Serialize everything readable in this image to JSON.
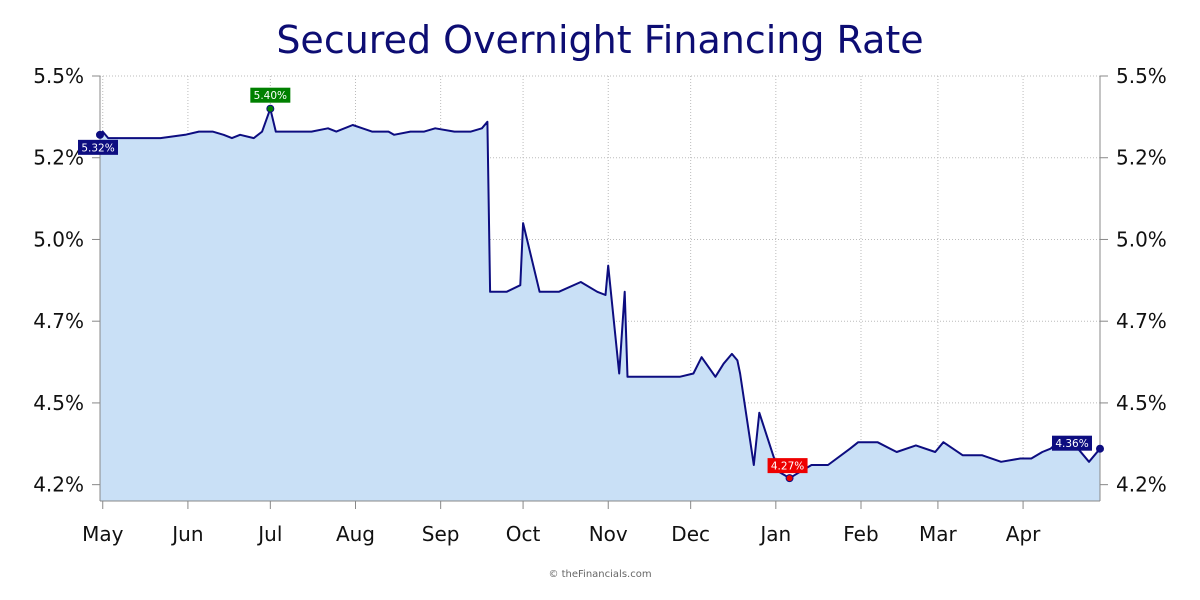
{
  "chart_data": {
    "type": "area",
    "title": "Secured Overnight Financing Rate",
    "xlabel": "",
    "ylabel": "",
    "y_unit": "%",
    "ylim": [
      4.2,
      5.5
    ],
    "y_tick_labels": [
      "5.5%",
      "5.2%",
      "5.0%",
      "4.7%",
      "4.5%",
      "4.2%"
    ],
    "y_tick_values": [
      5.5,
      5.25,
      5.0,
      4.75,
      4.5,
      4.25
    ],
    "x_tick_labels": [
      "May",
      "Jun",
      "Jul",
      "Aug",
      "Sep",
      "Oct",
      "Nov",
      "Dec",
      "Jan",
      "Feb",
      "Mar",
      "Apr"
    ],
    "xlim": [
      "2024-04-30",
      "2025-04-29"
    ],
    "grid": true,
    "y_axis": "both",
    "colors": {
      "line": "#0d0d80",
      "fill": "#c9e0f6",
      "high": "#008000",
      "low": "#ee0000",
      "first_last": "#0d0d80"
    },
    "annotations": [
      {
        "label": "5.32%",
        "x": "2024-04-30",
        "y": 5.32,
        "kind": "first"
      },
      {
        "label": "5.40%",
        "x": "2024-07-01",
        "y": 5.4,
        "kind": "high"
      },
      {
        "label": "4.27%",
        "x": "2025-01-06",
        "y": 4.27,
        "kind": "low"
      },
      {
        "label": "4.36%",
        "x": "2025-04-29",
        "y": 4.36,
        "kind": "last"
      }
    ],
    "series": [
      {
        "x": [
          "2024-04-30",
          "2024-05-01",
          "2024-05-03",
          "2024-05-07",
          "2024-05-15",
          "2024-05-22",
          "2024-05-31",
          "2024-06-05",
          "2024-06-10",
          "2024-06-14",
          "2024-06-17",
          "2024-06-20",
          "2024-06-25",
          "2024-06-28",
          "2024-07-01",
          "2024-07-03",
          "2024-07-10",
          "2024-07-16",
          "2024-07-22",
          "2024-07-25",
          "2024-07-31",
          "2024-08-07",
          "2024-08-13",
          "2024-08-15",
          "2024-08-21",
          "2024-08-26",
          "2024-08-30",
          "2024-09-06",
          "2024-09-12",
          "2024-09-16",
          "2024-09-18",
          "2024-09-19",
          "2024-09-25",
          "2024-09-30",
          "2024-10-01",
          "2024-10-07",
          "2024-10-14",
          "2024-10-22",
          "2024-10-28",
          "2024-10-31",
          "2024-11-01",
          "2024-11-05",
          "2024-11-07",
          "2024-11-08",
          "2024-11-15",
          "2024-11-22",
          "2024-11-27",
          "2024-12-02",
          "2024-12-05",
          "2024-12-10",
          "2024-12-13",
          "2024-12-16",
          "2024-12-18",
          "2024-12-19",
          "2024-12-24",
          "2024-12-26",
          "2024-12-31",
          "2025-01-02",
          "2025-01-06",
          "2025-01-08",
          "2025-01-14",
          "2025-01-20",
          "2025-01-28",
          "2025-01-31",
          "2025-02-07",
          "2025-02-14",
          "2025-02-21",
          "2025-02-28",
          "2025-03-03",
          "2025-03-10",
          "2025-03-17",
          "2025-03-24",
          "2025-03-31",
          "2025-04-04",
          "2025-04-08",
          "2025-04-11",
          "2025-04-15",
          "2025-04-21",
          "2025-04-25",
          "2025-04-29"
        ],
        "values": [
          5.32,
          5.33,
          5.31,
          5.31,
          5.31,
          5.31,
          5.32,
          5.33,
          5.33,
          5.32,
          5.31,
          5.32,
          5.31,
          5.33,
          5.4,
          5.33,
          5.33,
          5.33,
          5.34,
          5.33,
          5.35,
          5.33,
          5.33,
          5.32,
          5.33,
          5.33,
          5.34,
          5.33,
          5.33,
          5.34,
          5.36,
          4.84,
          4.84,
          4.86,
          5.05,
          4.84,
          4.84,
          4.87,
          4.84,
          4.83,
          4.92,
          4.59,
          4.84,
          4.58,
          4.58,
          4.58,
          4.58,
          4.59,
          4.64,
          4.58,
          4.62,
          4.65,
          4.63,
          4.59,
          4.31,
          4.47,
          4.34,
          4.29,
          4.27,
          4.28,
          4.31,
          4.31,
          4.36,
          4.38,
          4.38,
          4.35,
          4.37,
          4.35,
          4.38,
          4.34,
          4.34,
          4.32,
          4.33,
          4.33,
          4.35,
          4.36,
          4.39,
          4.36,
          4.32,
          4.36
        ]
      }
    ]
  },
  "footer": {
    "credit": "© theFinancials.com"
  }
}
